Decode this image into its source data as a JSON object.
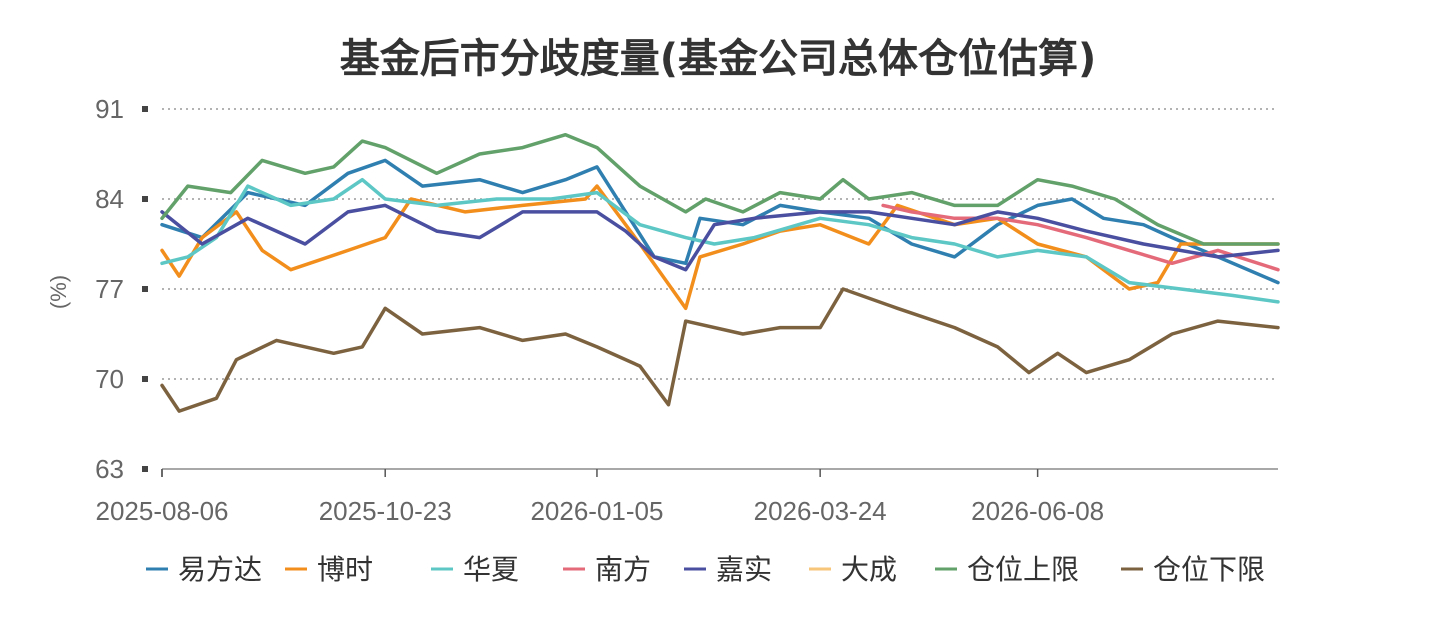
{
  "chart_data": {
    "type": "line",
    "title": "基金后市分歧度量(基金公司总体仓位估算)",
    "ylabel": "(%)",
    "ylim": [
      63,
      91
    ],
    "yticks": [
      "91",
      "84",
      "77",
      "70",
      "63"
    ],
    "xticks": [
      "2025-08-06",
      "2025-10-23",
      "2026-01-05",
      "2026-03-24",
      "2026-06-08"
    ],
    "x_domain": [
      "2025-08-06",
      "2026-08-31"
    ],
    "grid": "horizontal-dotted",
    "legend_position": "bottom",
    "series": [
      {
        "name": "易方达",
        "color": "#2f7fb0",
        "points": [
          [
            "2025-08-06",
            82.0
          ],
          [
            "2025-08-20",
            81.0
          ],
          [
            "2025-09-05",
            84.5
          ],
          [
            "2025-09-25",
            83.5
          ],
          [
            "2025-10-10",
            86.0
          ],
          [
            "2025-10-23",
            87.0
          ],
          [
            "2025-11-05",
            85.0
          ],
          [
            "2025-11-25",
            85.5
          ],
          [
            "2025-12-10",
            84.5
          ],
          [
            "2025-12-25",
            85.5
          ],
          [
            "2026-01-05",
            86.5
          ],
          [
            "2026-01-15",
            83.0
          ],
          [
            "2026-01-25",
            79.5
          ],
          [
            "2026-02-05",
            79.0
          ],
          [
            "2026-02-10",
            82.5
          ],
          [
            "2026-02-25",
            82.0
          ],
          [
            "2026-03-10",
            83.5
          ],
          [
            "2026-03-24",
            83.0
          ],
          [
            "2026-04-10",
            82.5
          ],
          [
            "2026-04-25",
            80.5
          ],
          [
            "2026-05-10",
            79.5
          ],
          [
            "2026-05-25",
            82.0
          ],
          [
            "2026-06-08",
            83.5
          ],
          [
            "2026-06-20",
            84.0
          ],
          [
            "2026-07-01",
            82.5
          ],
          [
            "2026-07-15",
            82.0
          ],
          [
            "2026-07-25",
            81.0
          ],
          [
            "2026-08-10",
            79.5
          ],
          [
            "2026-08-31",
            77.5
          ]
        ]
      },
      {
        "name": "博时",
        "color": "#f28e1c",
        "points": [
          [
            "2025-08-06",
            80.0
          ],
          [
            "2025-08-12",
            78.0
          ],
          [
            "2025-08-20",
            81.0
          ],
          [
            "2025-09-01",
            83.0
          ],
          [
            "2025-09-10",
            80.0
          ],
          [
            "2025-09-20",
            78.5
          ],
          [
            "2025-10-10",
            80.0
          ],
          [
            "2025-10-23",
            81.0
          ],
          [
            "2025-11-01",
            84.0
          ],
          [
            "2025-11-20",
            83.0
          ],
          [
            "2025-12-10",
            83.5
          ],
          [
            "2026-01-01",
            84.0
          ],
          [
            "2026-01-05",
            85.0
          ],
          [
            "2026-01-20",
            80.5
          ],
          [
            "2026-01-28",
            78.0
          ],
          [
            "2026-02-05",
            75.5
          ],
          [
            "2026-02-10",
            79.5
          ],
          [
            "2026-02-25",
            80.5
          ],
          [
            "2026-03-10",
            81.5
          ],
          [
            "2026-03-24",
            82.0
          ],
          [
            "2026-04-10",
            80.5
          ],
          [
            "2026-04-20",
            83.5
          ],
          [
            "2026-05-10",
            82.0
          ],
          [
            "2026-05-25",
            82.5
          ],
          [
            "2026-06-08",
            80.5
          ],
          [
            "2026-06-25",
            79.5
          ],
          [
            "2026-07-10",
            77.0
          ],
          [
            "2026-07-20",
            77.5
          ],
          [
            "2026-07-28",
            80.5
          ],
          [
            "2026-08-31",
            80.5
          ]
        ]
      },
      {
        "name": "华夏",
        "color": "#5cc7c5",
        "points": [
          [
            "2025-08-06",
            79.0
          ],
          [
            "2025-08-15",
            79.5
          ],
          [
            "2025-08-25",
            81.0
          ],
          [
            "2025-09-05",
            85.0
          ],
          [
            "2025-09-20",
            83.5
          ],
          [
            "2025-10-05",
            84.0
          ],
          [
            "2025-10-15",
            85.5
          ],
          [
            "2025-10-23",
            84.0
          ],
          [
            "2025-11-10",
            83.5
          ],
          [
            "2025-12-01",
            84.0
          ],
          [
            "2025-12-20",
            84.0
          ],
          [
            "2026-01-05",
            84.5
          ],
          [
            "2026-01-20",
            82.0
          ],
          [
            "2026-02-05",
            81.0
          ],
          [
            "2026-02-15",
            80.5
          ],
          [
            "2026-03-01",
            81.0
          ],
          [
            "2026-03-24",
            82.5
          ],
          [
            "2026-04-10",
            82.0
          ],
          [
            "2026-04-25",
            81.0
          ],
          [
            "2026-05-10",
            80.5
          ],
          [
            "2026-05-25",
            79.5
          ],
          [
            "2026-06-08",
            80.0
          ],
          [
            "2026-06-25",
            79.5
          ],
          [
            "2026-07-10",
            77.5
          ],
          [
            "2026-07-28",
            77.0
          ],
          [
            "2026-08-15",
            76.5
          ],
          [
            "2026-08-31",
            76.0
          ]
        ]
      },
      {
        "name": "南方",
        "color": "#e46a7a",
        "points": [
          [
            "2026-04-15",
            83.5
          ],
          [
            "2026-04-25",
            83.0
          ],
          [
            "2026-05-10",
            82.5
          ],
          [
            "2026-05-25",
            82.5
          ],
          [
            "2026-06-08",
            82.0
          ],
          [
            "2026-06-25",
            81.0
          ],
          [
            "2026-07-10",
            80.0
          ],
          [
            "2026-07-25",
            79.0
          ],
          [
            "2026-08-10",
            80.0
          ],
          [
            "2026-08-31",
            78.5
          ]
        ]
      },
      {
        "name": "嘉实",
        "color": "#4a4fa0",
        "points": [
          [
            "2025-08-06",
            83.0
          ],
          [
            "2025-08-20",
            80.5
          ],
          [
            "2025-09-05",
            82.5
          ],
          [
            "2025-09-25",
            80.5
          ],
          [
            "2025-10-10",
            83.0
          ],
          [
            "2025-10-23",
            83.5
          ],
          [
            "2025-11-10",
            81.5
          ],
          [
            "2025-11-25",
            81.0
          ],
          [
            "2025-12-10",
            83.0
          ],
          [
            "2025-12-25",
            83.0
          ],
          [
            "2026-01-05",
            83.0
          ],
          [
            "2026-01-15",
            81.5
          ],
          [
            "2026-01-25",
            79.5
          ],
          [
            "2026-02-05",
            78.5
          ],
          [
            "2026-02-15",
            82.0
          ],
          [
            "2026-03-01",
            82.5
          ],
          [
            "2026-03-24",
            83.0
          ],
          [
            "2026-04-10",
            83.0
          ],
          [
            "2026-04-25",
            82.5
          ],
          [
            "2026-05-10",
            82.0
          ],
          [
            "2026-05-25",
            83.0
          ],
          [
            "2026-06-08",
            82.5
          ],
          [
            "2026-06-25",
            81.5
          ],
          [
            "2026-07-15",
            80.5
          ],
          [
            "2026-08-10",
            79.5
          ],
          [
            "2026-08-31",
            80.0
          ]
        ]
      },
      {
        "name": "大成",
        "color": "#f7c67a",
        "points": []
      },
      {
        "name": "仓位上限",
        "color": "#62a16a",
        "points": [
          [
            "2025-08-06",
            82.5
          ],
          [
            "2025-08-15",
            85.0
          ],
          [
            "2025-08-30",
            84.5
          ],
          [
            "2025-09-10",
            87.0
          ],
          [
            "2025-09-25",
            86.0
          ],
          [
            "2025-10-05",
            86.5
          ],
          [
            "2025-10-15",
            88.5
          ],
          [
            "2025-10-23",
            88.0
          ],
          [
            "2025-11-10",
            86.0
          ],
          [
            "2025-11-25",
            87.5
          ],
          [
            "2025-12-10",
            88.0
          ],
          [
            "2025-12-25",
            89.0
          ],
          [
            "2026-01-05",
            88.0
          ],
          [
            "2026-01-20",
            85.0
          ],
          [
            "2026-02-05",
            83.0
          ],
          [
            "2026-02-12",
            84.0
          ],
          [
            "2026-02-25",
            83.0
          ],
          [
            "2026-03-10",
            84.5
          ],
          [
            "2026-03-24",
            84.0
          ],
          [
            "2026-04-01",
            85.5
          ],
          [
            "2026-04-10",
            84.0
          ],
          [
            "2026-04-25",
            84.5
          ],
          [
            "2026-05-10",
            83.5
          ],
          [
            "2026-05-25",
            83.5
          ],
          [
            "2026-06-08",
            85.5
          ],
          [
            "2026-06-20",
            85.0
          ],
          [
            "2026-07-05",
            84.0
          ],
          [
            "2026-07-20",
            82.0
          ],
          [
            "2026-08-05",
            80.5
          ],
          [
            "2026-08-31",
            80.5
          ]
        ]
      },
      {
        "name": "仓位下限",
        "color": "#7d6240",
        "points": [
          [
            "2025-08-06",
            69.5
          ],
          [
            "2025-08-12",
            67.5
          ],
          [
            "2025-08-25",
            68.5
          ],
          [
            "2025-09-01",
            71.5
          ],
          [
            "2025-09-15",
            73.0
          ],
          [
            "2025-10-05",
            72.0
          ],
          [
            "2025-10-15",
            72.5
          ],
          [
            "2025-10-23",
            75.5
          ],
          [
            "2025-11-05",
            73.5
          ],
          [
            "2025-11-25",
            74.0
          ],
          [
            "2025-12-10",
            73.0
          ],
          [
            "2025-12-25",
            73.5
          ],
          [
            "2026-01-05",
            72.5
          ],
          [
            "2026-01-20",
            71.0
          ],
          [
            "2026-01-30",
            68.0
          ],
          [
            "2026-02-05",
            74.5
          ],
          [
            "2026-02-25",
            73.5
          ],
          [
            "2026-03-10",
            74.0
          ],
          [
            "2026-03-24",
            74.0
          ],
          [
            "2026-04-01",
            77.0
          ],
          [
            "2026-04-20",
            75.5
          ],
          [
            "2026-05-10",
            74.0
          ],
          [
            "2026-05-25",
            72.5
          ],
          [
            "2026-06-05",
            70.5
          ],
          [
            "2026-06-15",
            72.0
          ],
          [
            "2026-06-25",
            70.5
          ],
          [
            "2026-07-10",
            71.5
          ],
          [
            "2026-07-25",
            73.5
          ],
          [
            "2026-08-10",
            74.5
          ],
          [
            "2026-08-31",
            74.0
          ]
        ]
      }
    ]
  }
}
